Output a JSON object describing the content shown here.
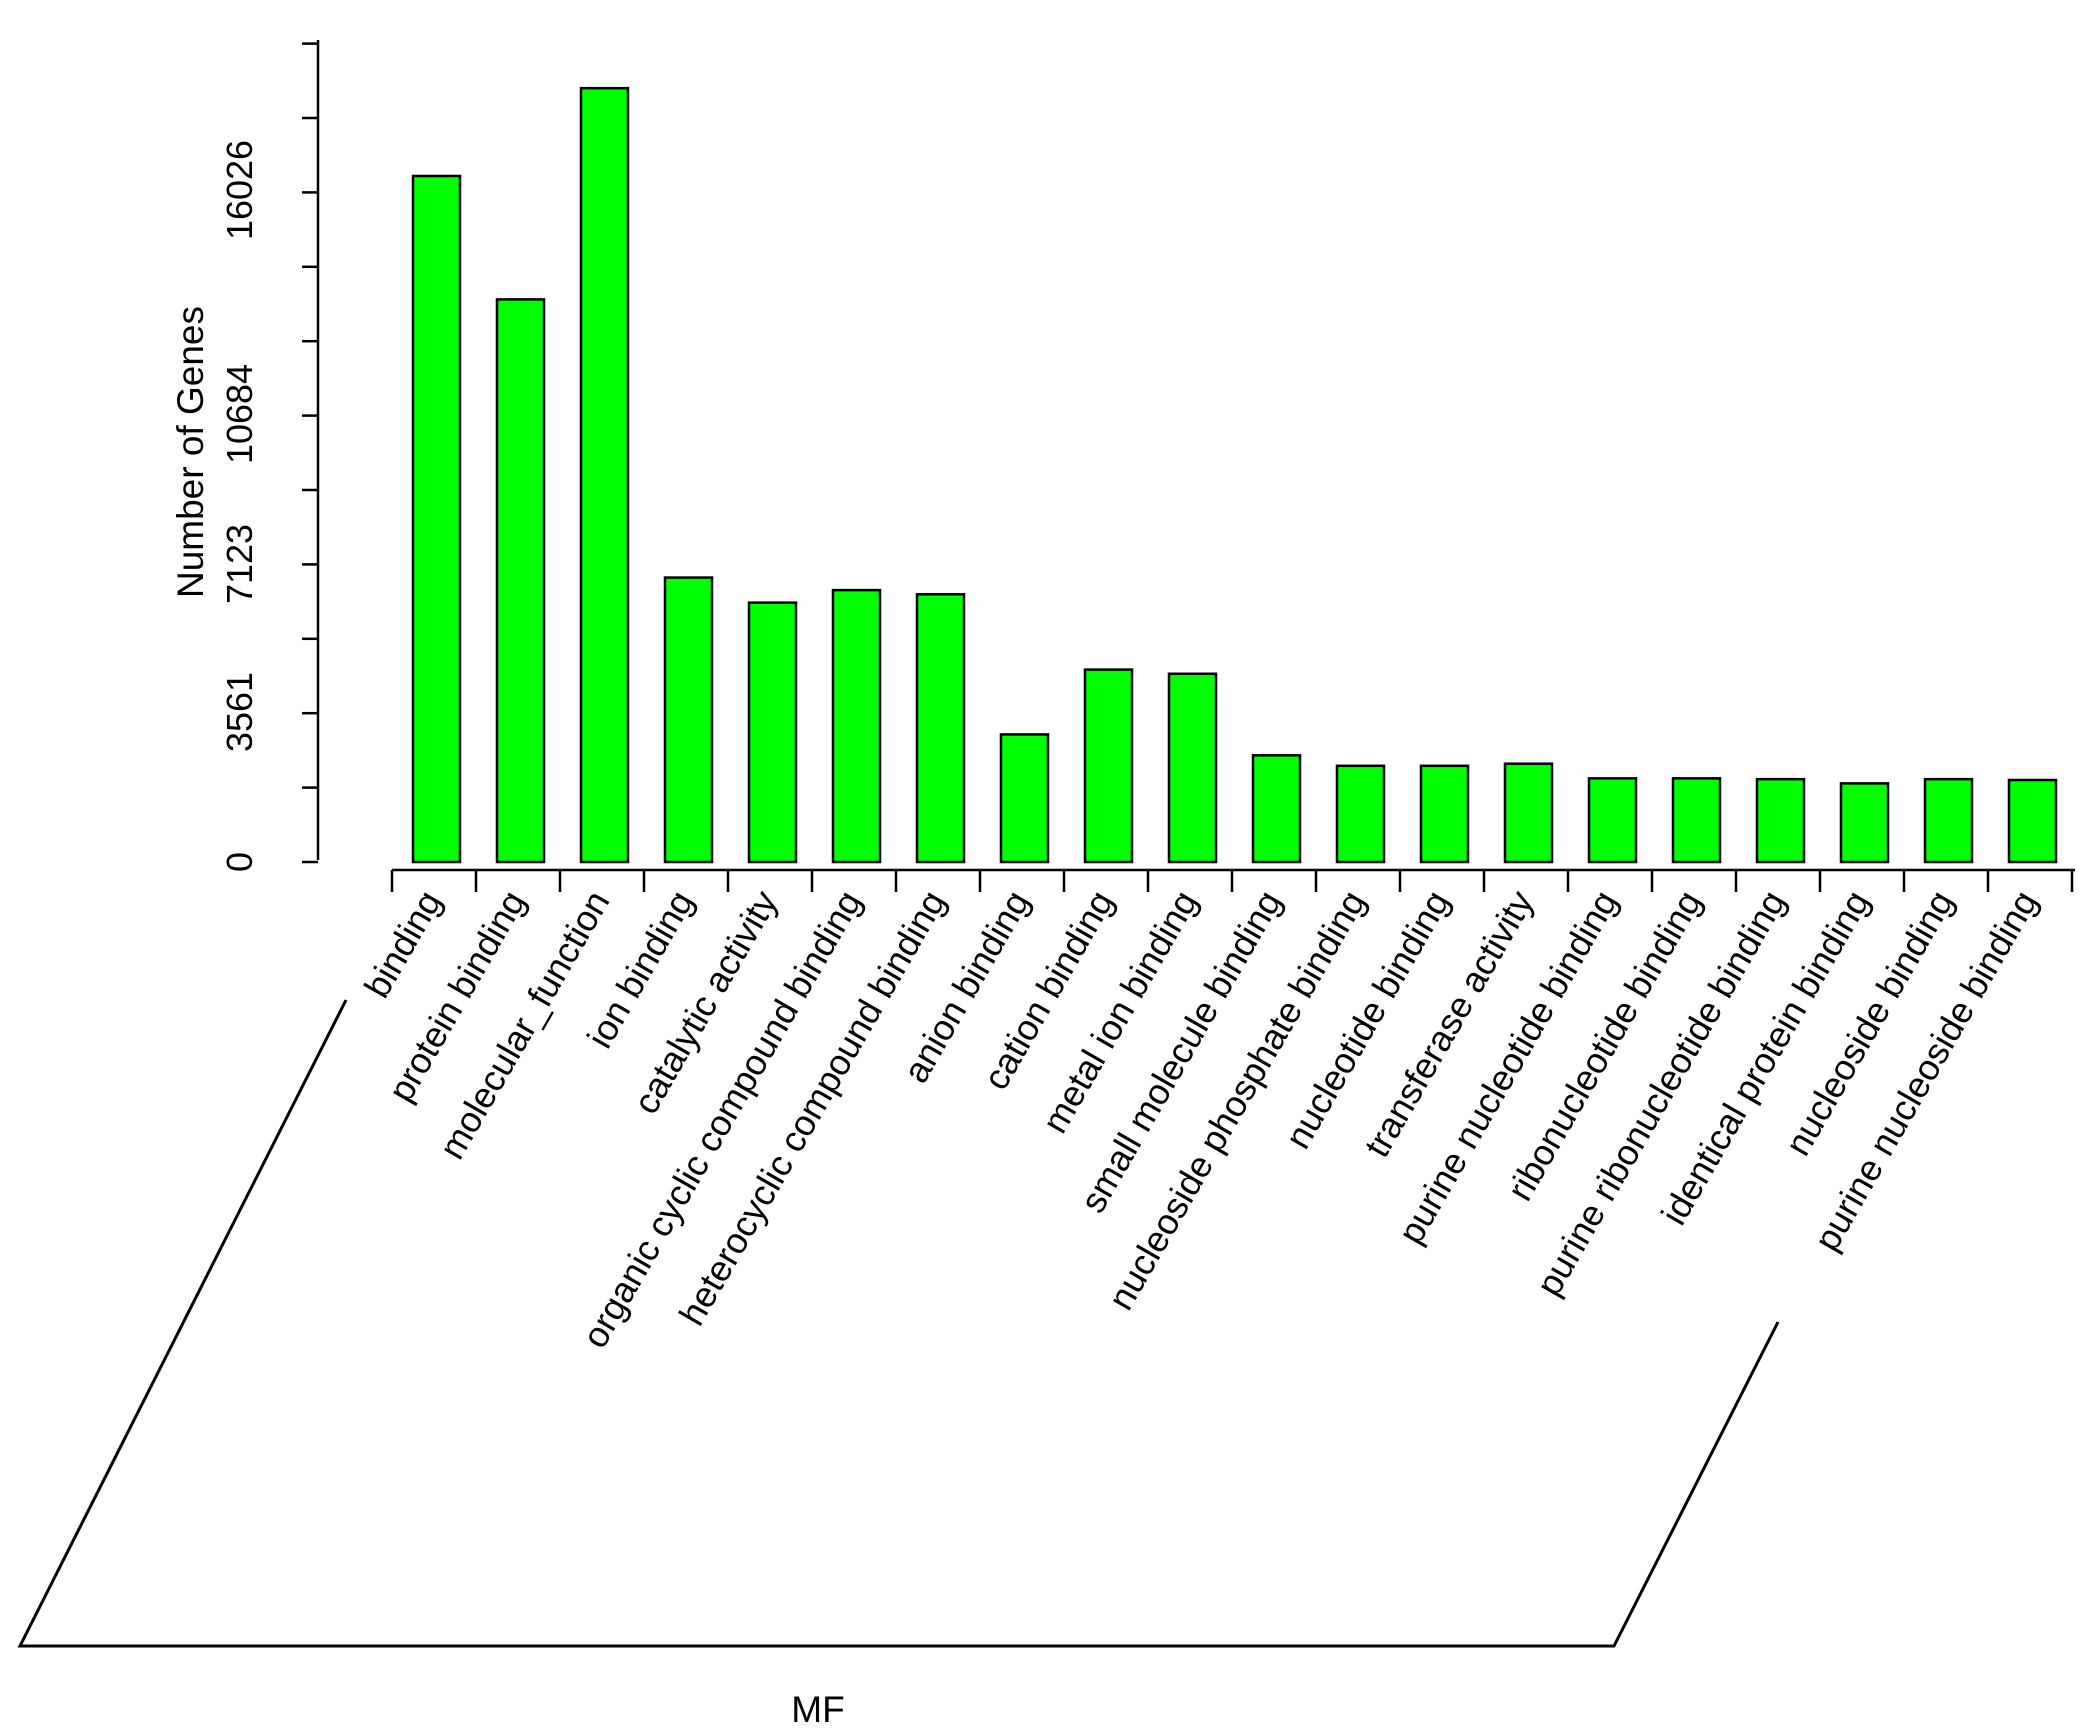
{
  "chart_data": {
    "type": "bar",
    "title": "",
    "xlabel": "MF",
    "ylabel": "Number of Genes",
    "y_ticks": [
      0,
      3561,
      7123,
      10684,
      16026
    ],
    "ylim": [
      0,
      22000
    ],
    "bar_color": "#00ff00",
    "grid": false,
    "legend": "none",
    "categories": [
      "binding",
      "protein binding",
      "molecular_function",
      "ion binding",
      "catalytic activity",
      "organic cyclic compound binding",
      "heterocyclic compound binding",
      "anion binding",
      "cation binding",
      "metal ion binding",
      "small molecule binding",
      "nucleoside phosphate binding",
      "nucleotide binding",
      "transferase activity",
      "purine nucleotide binding",
      "ribonucleotide binding",
      "purine ribonucleotide binding",
      "identical protein binding",
      "nucleoside binding",
      "purine nucleoside binding"
    ],
    "values": [
      16400,
      13450,
      18500,
      6800,
      6200,
      6500,
      6400,
      3050,
      4600,
      4500,
      2550,
      2300,
      2300,
      2350,
      2000,
      2000,
      1980,
      1880,
      1980,
      1960
    ]
  }
}
